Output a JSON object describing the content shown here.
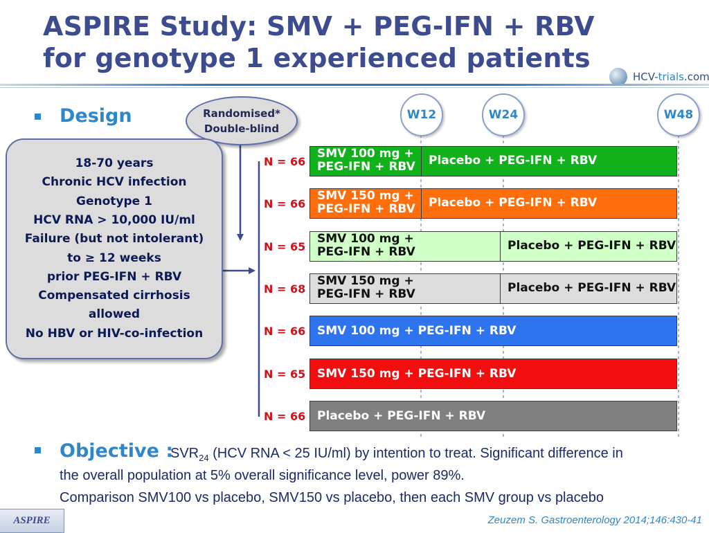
{
  "title": {
    "line1": "ASPIRE Study: SMV + PEG-IFN + RBV",
    "line2": "for genotype 1 experienced patients"
  },
  "logo": {
    "text_main": "HCV-",
    "text_accent": "trials",
    "text_tail": ".com"
  },
  "design_label": "Design",
  "randomised": {
    "line1": "Randomised*",
    "line2": "Double-blind"
  },
  "criteria": [
    "18-70 years",
    "Chronic HCV infection",
    "Genotype 1",
    "HCV RNA > 10,000 IU/ml",
    "Failure (but not intolerant)",
    "to ≥ 12 weeks",
    "prior PEG-IFN + RBV",
    "Compensated cirrhosis",
    "allowed",
    "No HBV or HIV-co-infection"
  ],
  "timepoints": [
    {
      "label": "W12",
      "week": 12
    },
    {
      "label": "W24",
      "week": 24
    },
    {
      "label": "W48",
      "week": 48
    }
  ],
  "arms": [
    {
      "n": "N = 66",
      "color": "#11b11b",
      "first_fraction": 0.303,
      "first_line1": "SMV 100 mg +",
      "first_line2": "PEG-IFN + RBV",
      "second": "Placebo + PEG-IFN + RBV",
      "text_color": "#ffffff"
    },
    {
      "n": "N = 66",
      "color": "#ff6e0d",
      "first_fraction": 0.303,
      "first_line1": "SMV 150 mg +",
      "first_line2": "PEG-IFN + RBV",
      "second": "Placebo + PEG-IFN + RBV",
      "text_color": "#ffffff"
    },
    {
      "n": "N = 65",
      "color": "#cfffc6",
      "first_fraction": 0.518,
      "first_line1": "SMV 100 mg +",
      "first_line2": "PEG-IFN + RBV",
      "second": "Placebo + PEG-IFN + RBV",
      "text_color": "#111111"
    },
    {
      "n": "N = 68",
      "color": "#dddddd",
      "first_fraction": 0.518,
      "first_line1": "SMV 150 mg +",
      "first_line2": "PEG-IFN + RBV",
      "second": "Placebo + PEG-IFN + RBV",
      "text_color": "#111111"
    },
    {
      "n": "N = 66",
      "color": "#2f74ef",
      "full": "SMV 100 mg + PEG-IFN + RBV",
      "text_color": "#ffffff"
    },
    {
      "n": "N = 65",
      "color": "#f20e0e",
      "full": "SMV 150 mg + PEG-IFN + RBV",
      "text_color": "#ffffff"
    },
    {
      "n": "N = 66",
      "color": "#808080",
      "full": "Placebo + PEG-IFN + RBV",
      "text_color": "#ffffff"
    }
  ],
  "objective": {
    "head": "Objective :",
    "svr": "SVR",
    "svr_sub": "24",
    "line1_rest": " (HCV RNA < 25 IU/ml) by intention to treat. Significant difference in",
    "line2": "the overall population at 5% overall significance level, power 89%.",
    "line3": "Comparison SMV100 vs placebo, SMV150 vs placebo, then each SMV group vs placebo"
  },
  "reference": "Zeuzem S. Gastroenterology 2014;146:430-41",
  "tag": "ASPIRE",
  "colors": {
    "title": "#3d4c8f",
    "accent": "#2f86c8",
    "n_label": "#d0111b"
  }
}
